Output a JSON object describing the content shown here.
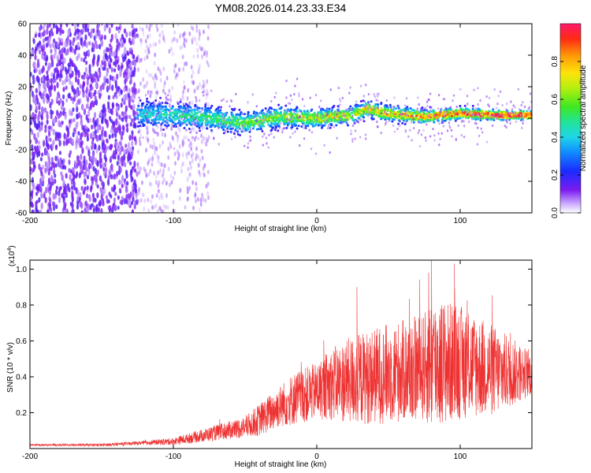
{
  "title": "YM08.2026.014.23.33.E34",
  "colors": {
    "snr_line": "#ee3333",
    "scatter_purple": "#7b1cf0",
    "background": "#ffffff"
  },
  "chart_data": [
    {
      "type": "heatmap",
      "title": "YM08.2026.014.23.33.E34",
      "xlabel": "Height of straight line (km)",
      "ylabel": "Frequency (Hz)",
      "xlim": [
        -200,
        150
      ],
      "ylim": [
        -60,
        60
      ],
      "x_ticks": [
        -200,
        -100,
        0,
        100
      ],
      "x_tick_labels": [
        "-200",
        "-100",
        "0",
        "100"
      ],
      "y_ticks": [
        60,
        40,
        20,
        0,
        -20,
        -40,
        -60
      ],
      "y_tick_labels": [
        "60",
        "40",
        "20",
        "0",
        "-20",
        "-40",
        "-60"
      ],
      "colorbar": {
        "label": "Normalized spectral amplitude",
        "range": [
          0,
          1
        ],
        "ticks": [
          0.0,
          0.2,
          0.4,
          0.6,
          0.8
        ],
        "tick_labels": [
          "0.0",
          "0.2",
          "0.4",
          "0.6",
          "0.8"
        ],
        "colormap": "rainbow"
      },
      "ridge": {
        "x": [
          -125,
          -100,
          -75,
          -50,
          -25,
          0,
          25,
          35,
          50,
          75,
          100,
          125,
          150
        ],
        "frequency": [
          3,
          2,
          0,
          -3,
          1,
          0,
          2,
          6,
          3,
          1,
          3,
          2,
          2
        ]
      },
      "noise_region": {
        "x_range": [
          -200,
          -125
        ],
        "frequency_range": [
          -60,
          60
        ]
      }
    },
    {
      "type": "line",
      "xlabel": "Height of straight line (km)",
      "ylabel": "SNR (10 * v/v)",
      "multiplier": "(x10",
      "multiplier_exp": "4",
      "multiplier_close": ")",
      "xlim": [
        -200,
        150
      ],
      "ylim": [
        0,
        1.05
      ],
      "x_ticks": [
        -200,
        -100,
        0,
        100
      ],
      "x_tick_labels": [
        "-200",
        "-100",
        "0",
        "100"
      ],
      "y_ticks": [
        0.2,
        0.4,
        0.6,
        0.8,
        1.0
      ],
      "y_tick_labels": [
        "0.2",
        "0.4",
        "0.6",
        "0.8",
        "1.0"
      ],
      "envelope": {
        "x": [
          -200,
          -150,
          -125,
          -100,
          -75,
          -50,
          -40,
          -25,
          -15,
          0,
          10,
          25,
          50,
          75,
          80,
          100,
          125,
          150
        ],
        "mean": [
          0.02,
          0.02,
          0.03,
          0.04,
          0.08,
          0.12,
          0.16,
          0.24,
          0.28,
          0.32,
          0.36,
          0.38,
          0.42,
          0.45,
          0.48,
          0.48,
          0.43,
          0.42
        ],
        "amplitude": [
          0.005,
          0.008,
          0.01,
          0.02,
          0.04,
          0.06,
          0.09,
          0.12,
          0.15,
          0.16,
          0.2,
          0.25,
          0.28,
          0.3,
          0.38,
          0.32,
          0.25,
          0.12
        ]
      },
      "peaks": [
        {
          "x": 80,
          "y": 1.05
        },
        {
          "x": 96,
          "y": 1.03
        },
        {
          "x": 78,
          "y": 0.98
        },
        {
          "x": 28,
          "y": 0.9
        }
      ]
    }
  ]
}
